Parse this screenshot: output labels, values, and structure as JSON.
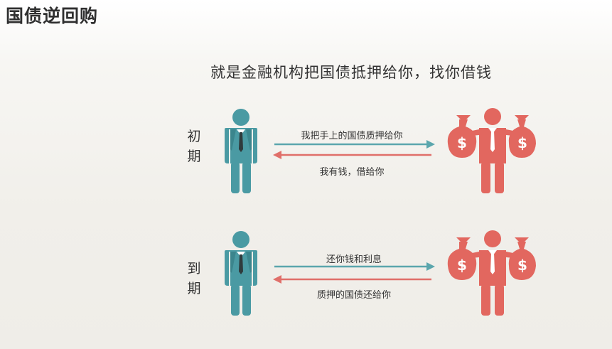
{
  "title": "国债逆回购",
  "subtitle": "就是金融机构把国债抵押给你，找你借钱",
  "colors": {
    "investor": "#4a9aa3",
    "institution": "#e2675f",
    "arrow_right": "#5ba6ad",
    "arrow_left": "#e06f6a"
  },
  "phases": [
    {
      "label_chars": [
        "初",
        "期"
      ],
      "arrow_right_text": "我把手上的国债质押给你",
      "arrow_left_text": "我有钱，借给你"
    },
    {
      "label_chars": [
        "到",
        "期"
      ],
      "arrow_right_text": "还你钱和利息",
      "arrow_left_text": "质押的国债还给你"
    }
  ],
  "icons": {
    "investor": "businessman-icon",
    "institution": "banker-with-money-bags-icon",
    "money_bag_symbol": "$"
  }
}
